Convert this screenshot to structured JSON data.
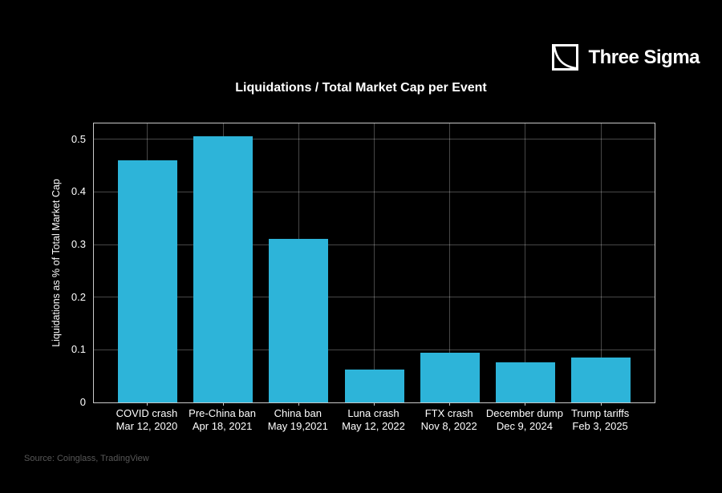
{
  "logo": {
    "text": "Three Sigma",
    "icon": "three-sigma-curve-icon",
    "color": "#ffffff"
  },
  "source": "Source: Coinglass, TradingView",
  "source_color": "#585858",
  "chart_data": {
    "type": "bar",
    "title": "Liquidations / Total Market Cap per Event",
    "xlabel": "",
    "ylabel": "Liquidations as % of Total Market Cap",
    "categories": [
      "COVID crash",
      "Pre-China ban",
      "China ban",
      "Luna crash",
      "FTX crash",
      "December dump",
      "Trump tariffs"
    ],
    "category_dates": [
      "Mar 12, 2020",
      "Apr 18, 2021",
      "May 19,2021",
      "May 12, 2022",
      "Nov 8, 2022",
      "Dec 9, 2024",
      "Feb 3, 2025"
    ],
    "values": [
      0.46,
      0.505,
      0.31,
      0.063,
      0.094,
      0.076,
      0.086
    ],
    "ylim": [
      0,
      0.53
    ],
    "yticks": [
      0,
      0.1,
      0.2,
      0.3,
      0.4,
      0.5
    ],
    "grid": true,
    "legend": "none",
    "bar_color": "#2db4d9",
    "background": "#000000",
    "axis_color": "#c9c9c9",
    "grid_color": "rgba(255,255,255,0.28)",
    "text_color": "#ffffff"
  }
}
